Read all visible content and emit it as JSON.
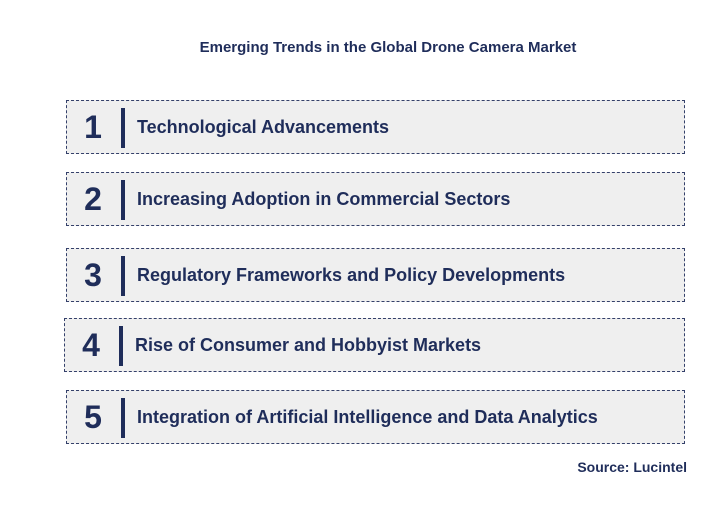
{
  "title": "Emerging Trends in the Global Drone Camera Market",
  "items": [
    {
      "number": "1",
      "label": "Technological Advancements"
    },
    {
      "number": "2",
      "label": "Increasing Adoption in Commercial Sectors"
    },
    {
      "number": "3",
      "label": "Regulatory Frameworks and Policy Developments"
    },
    {
      "number": "4",
      "label": "Rise of Consumer and Hobbyist Markets"
    },
    {
      "number": "5",
      "label": "Integration of Artificial Intelligence and Data Analytics"
    }
  ],
  "source": "Source: Lucintel"
}
